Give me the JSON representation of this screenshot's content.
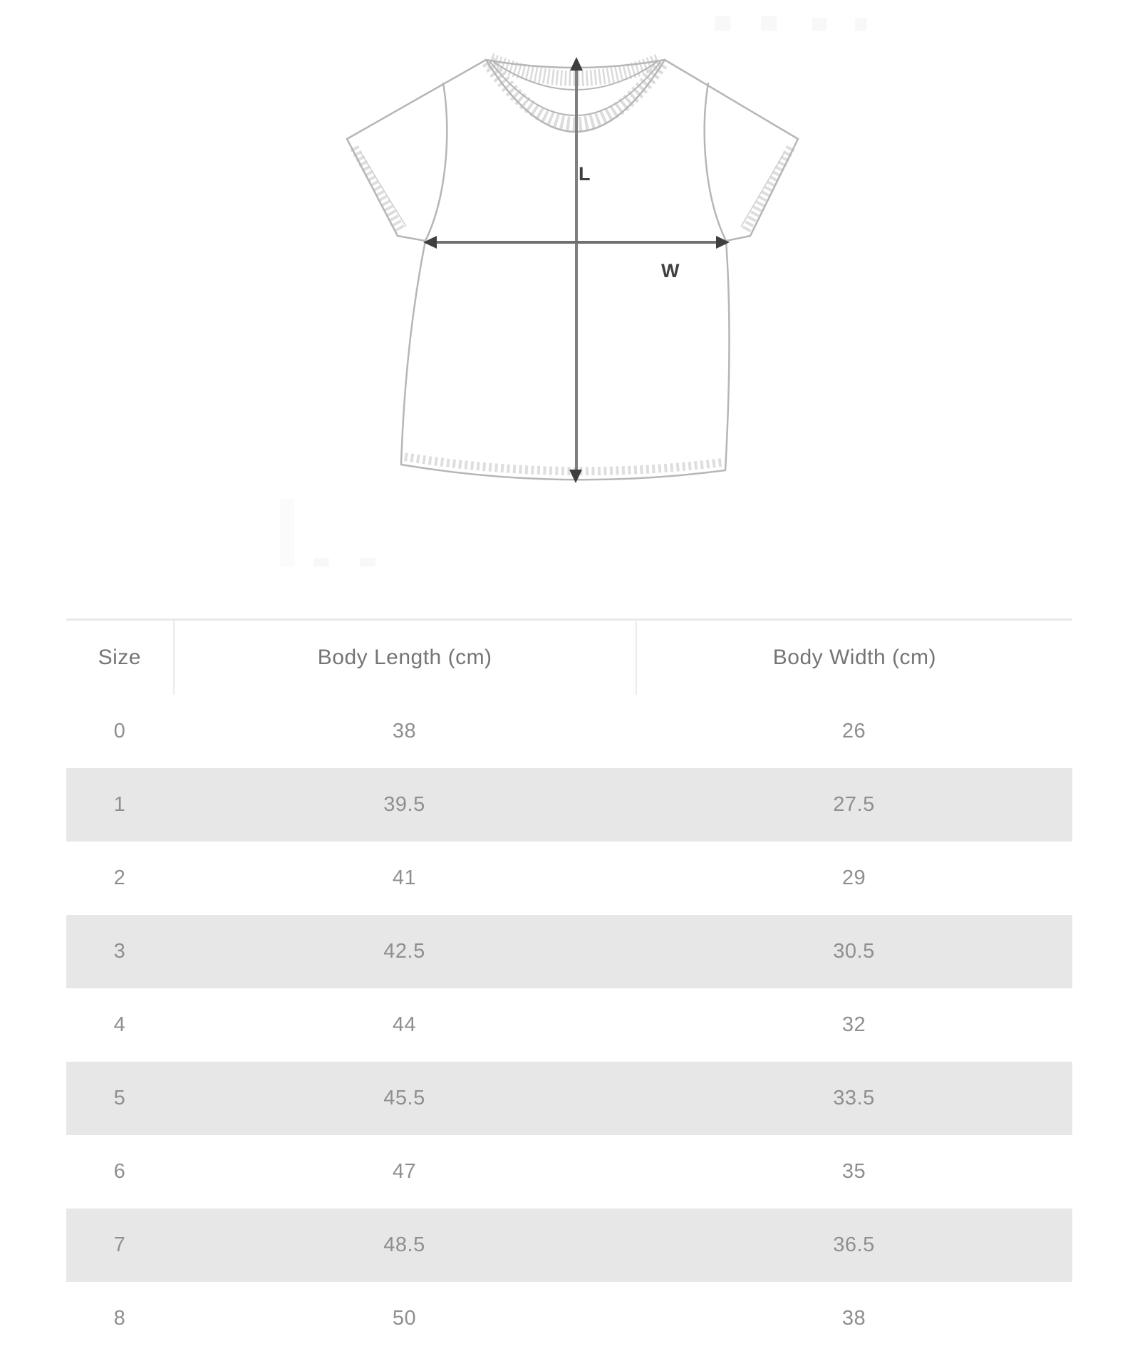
{
  "diagram": {
    "description": "flat line drawing of a short-sleeve crew-neck t-shirt with measurement arrows",
    "length_label": "L",
    "width_label": "W"
  },
  "table": {
    "columns": [
      "Size",
      "Body Length (cm)",
      "Body Width (cm)"
    ],
    "rows": [
      [
        "0",
        "38",
        "26"
      ],
      [
        "1",
        "39.5",
        "27.5"
      ],
      [
        "2",
        "41",
        "29"
      ],
      [
        "3",
        "42.5",
        "30.5"
      ],
      [
        "4",
        "44",
        "32"
      ],
      [
        "5",
        "45.5",
        "33.5"
      ],
      [
        "6",
        "47",
        "35"
      ],
      [
        "7",
        "48.5",
        "36.5"
      ],
      [
        "8",
        "50",
        "38"
      ]
    ]
  },
  "colors": {
    "row_alt_background": "#e7e7e7",
    "table_top_border": "#e9e9e9",
    "header_text": "#757575",
    "cell_text": "#8f8f8f",
    "shirt_outline": "#b6b6b6",
    "stitching": "#dcdcdc",
    "arrow_line": "#7f7f7f",
    "arrow_head_and_labels": "#3f3f3f"
  }
}
